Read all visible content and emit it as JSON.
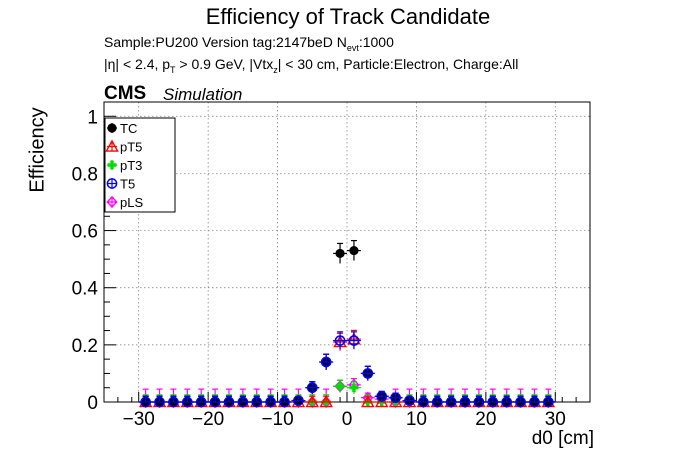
{
  "chart_data": {
    "type": "scatter",
    "title": "Efficiency of Track Candidate",
    "subtitle_line1": {
      "pre": "Sample:PU200   Version tag:2147beD  N",
      "sub": "evt",
      "post": ":1000"
    },
    "subtitle_line2": {
      "p1": "|η| < 2.4, p",
      "s1": "T",
      "p2": " > 0.9 GeV, |Vtx",
      "s2": "z",
      "p3": "| < 30 cm, Particle:Electron, Charge:All"
    },
    "cms_label": "CMS",
    "sim_label": "Simulation",
    "xlabel": "d0 [cm]",
    "ylabel": "Efficiency",
    "xlim": [
      -35,
      35
    ],
    "ylim": [
      0,
      1.05
    ],
    "x_ticks": [
      -30,
      -20,
      -10,
      0,
      10,
      20,
      30
    ],
    "x_tick_labels": [
      "−30",
      "−20",
      "−10",
      "0",
      "10",
      "20",
      "30"
    ],
    "y_ticks": [
      0,
      0.2,
      0.4,
      0.6,
      0.8,
      1
    ],
    "y_tick_labels": [
      "0",
      "0.2",
      "0.4",
      "0.6",
      "0.8",
      "1"
    ],
    "grid": true,
    "legend_position": "top-left",
    "x": [
      -29,
      -27,
      -25,
      -23,
      -21,
      -19,
      -17,
      -15,
      -13,
      -11,
      -9,
      -7,
      -5,
      -3,
      -1,
      1,
      3,
      5,
      7,
      9,
      11,
      13,
      15,
      17,
      19,
      21,
      23,
      25,
      27,
      29
    ],
    "series": [
      {
        "name": "TC",
        "color": "#000000",
        "marker": "circle-filled",
        "values": [
          0,
          0,
          0,
          0,
          0,
          0,
          0,
          0,
          0,
          0,
          0,
          0.005,
          0.05,
          0.14,
          0.52,
          0.53,
          0.1,
          0.02,
          0.015,
          0.005,
          0,
          0,
          0,
          0,
          0,
          0,
          0,
          0,
          0,
          0
        ]
      },
      {
        "name": "pT5",
        "color": "#ff0000",
        "marker": "triangle-open",
        "values": [
          0,
          0,
          0,
          0,
          0,
          0,
          0,
          0,
          0,
          0,
          0,
          0,
          0,
          0,
          0.21,
          0.22,
          0,
          0,
          0,
          0,
          0,
          0,
          0,
          0,
          0,
          0,
          0,
          0,
          0,
          0
        ]
      },
      {
        "name": "pT3",
        "color": "#00dd00",
        "marker": "cross-filled",
        "values": [
          0,
          0,
          0,
          0,
          0,
          0,
          0,
          0,
          0,
          0,
          0,
          0,
          0,
          0,
          0.055,
          0.05,
          0,
          0,
          0,
          0,
          0,
          0,
          0,
          0,
          0,
          0,
          0,
          0,
          0,
          0
        ]
      },
      {
        "name": "T5",
        "color": "#0000ff",
        "marker": "circle-open",
        "values": [
          0,
          0,
          0,
          0,
          0,
          0,
          0,
          0,
          0,
          0,
          0,
          0.005,
          0.05,
          0.14,
          0.215,
          0.215,
          0.1,
          0.02,
          0.015,
          0.005,
          0,
          0,
          0,
          0,
          0,
          0,
          0,
          0,
          0,
          0
        ]
      },
      {
        "name": "pLS",
        "color": "#ff00ff",
        "marker": "diamond-open",
        "values": [
          0,
          0,
          0,
          0,
          0,
          0,
          0,
          0,
          0,
          0,
          0,
          0,
          0,
          0,
          0.055,
          0.06,
          0.015,
          0.01,
          0,
          0,
          0,
          0,
          0,
          0,
          0,
          0,
          0,
          0,
          0,
          0
        ]
      }
    ]
  }
}
